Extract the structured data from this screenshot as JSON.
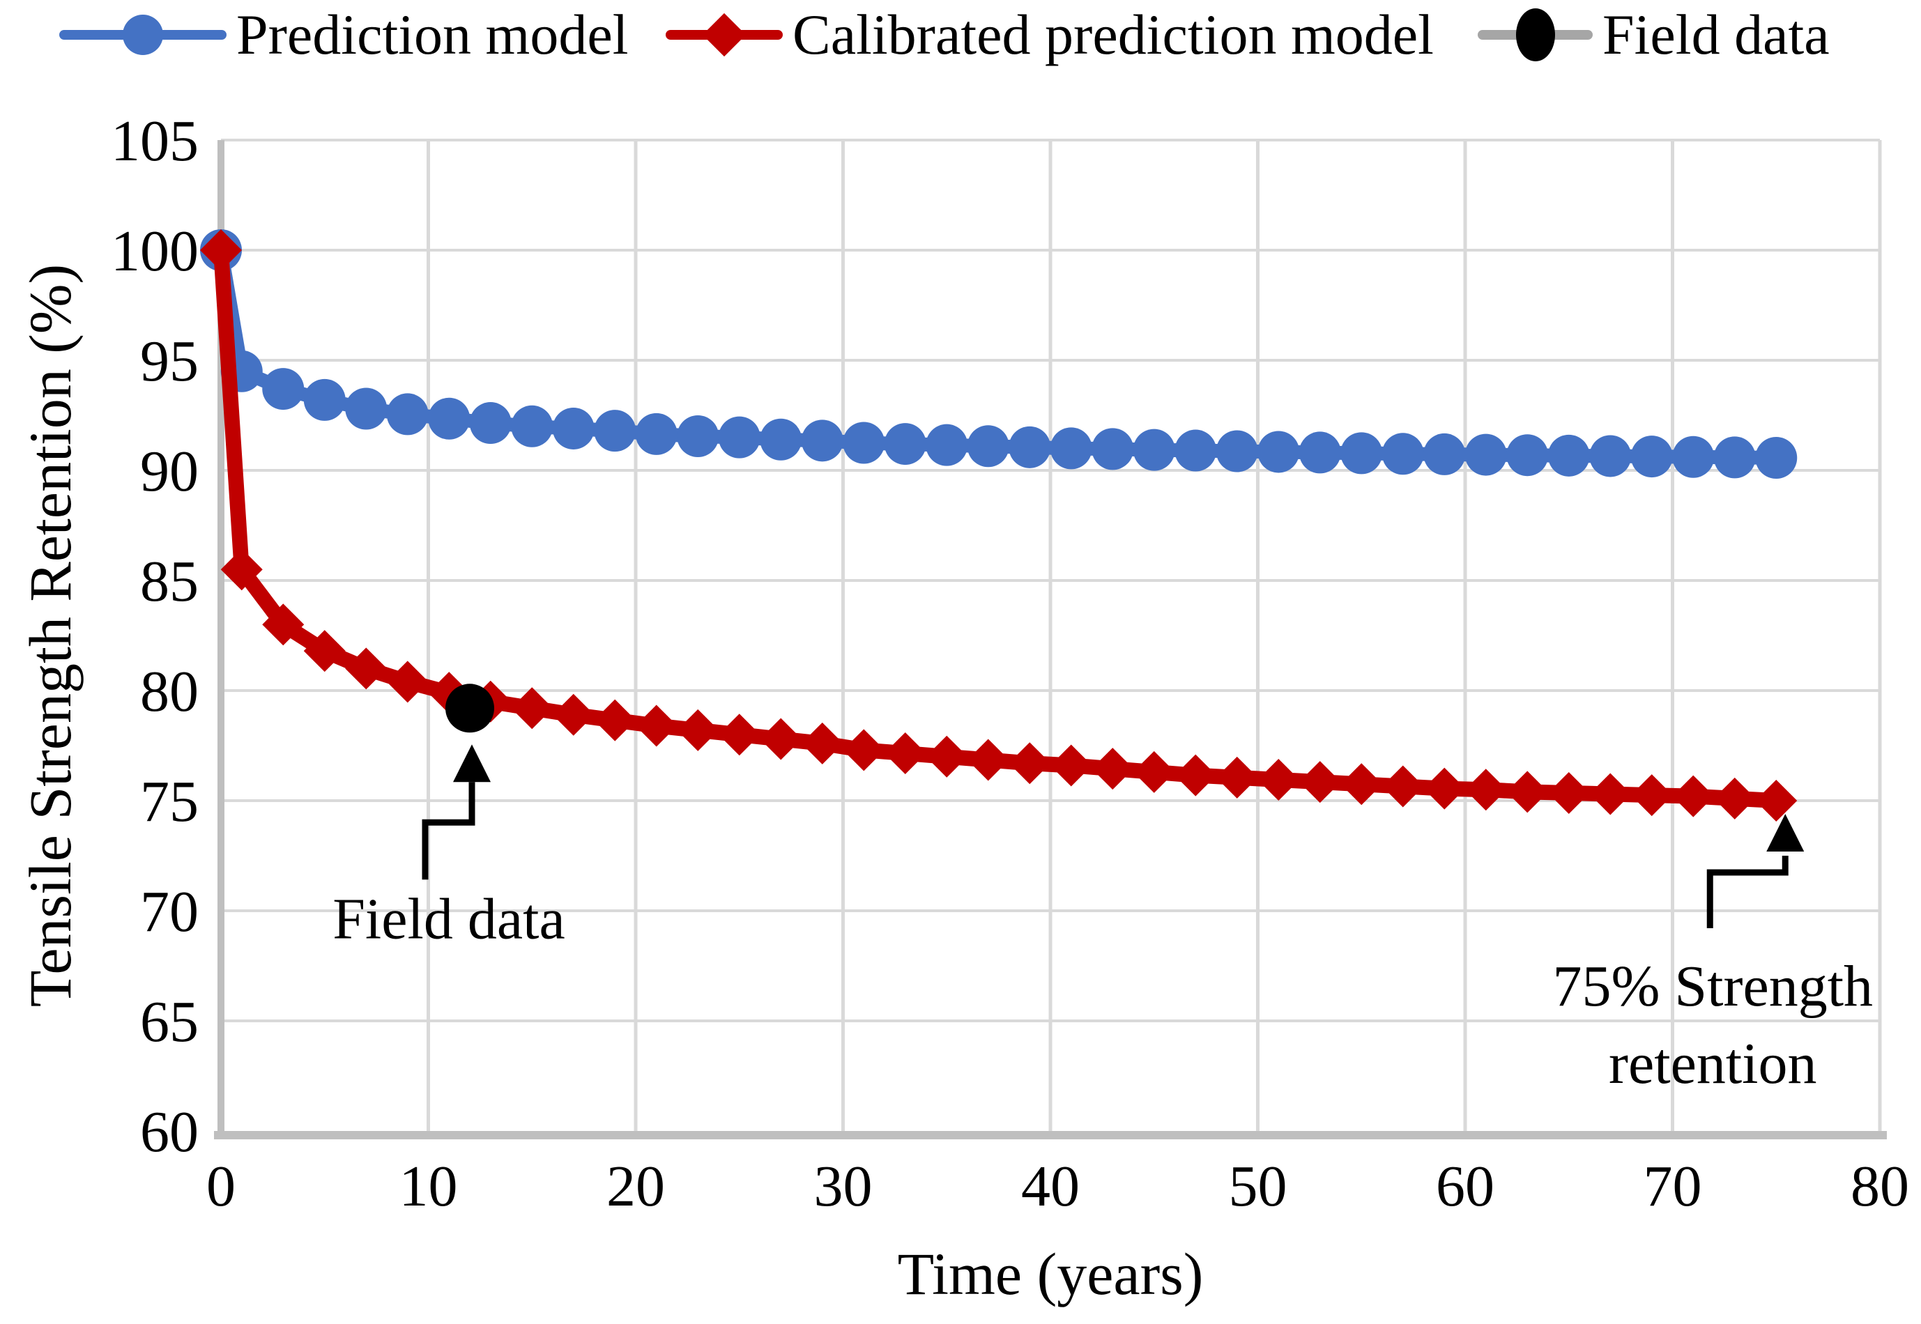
{
  "legend": {
    "items": [
      {
        "label": "Prediction model",
        "line_color": "#4472C4",
        "marker_color": "#4472C4",
        "marker": "circle"
      },
      {
        "label": "Calibrated prediction model",
        "line_color": "#C00000",
        "marker_color": "#C00000",
        "marker": "diamond"
      },
      {
        "label": "Field data",
        "line_color": "#A6A6A6",
        "marker_color": "#000000",
        "marker": "circle"
      }
    ]
  },
  "chart_data": {
    "type": "line",
    "title": "",
    "xlabel": "Time (years)",
    "ylabel": "Tensile Strength Retention (%)",
    "xlim": [
      0,
      80
    ],
    "ylim": [
      60,
      105
    ],
    "x_ticks": [
      0,
      10,
      20,
      30,
      40,
      50,
      60,
      70,
      80
    ],
    "y_ticks": [
      60,
      65,
      70,
      75,
      80,
      85,
      90,
      95,
      100,
      105
    ],
    "grid": true,
    "grid_color": "#D9D9D9",
    "axis_color": "#BFBFBF",
    "background": "#FFFFFF",
    "legend_position": "top",
    "series": [
      {
        "name": "Prediction model",
        "color": "#4472C4",
        "marker": "circle",
        "marker_size": 30,
        "line_width": 20,
        "x": [
          0,
          1,
          3,
          5,
          7,
          9,
          11,
          13,
          15,
          17,
          19,
          21,
          23,
          25,
          27,
          29,
          31,
          33,
          35,
          37,
          39,
          41,
          43,
          45,
          47,
          49,
          51,
          53,
          55,
          57,
          59,
          61,
          63,
          65,
          67,
          69,
          71,
          73,
          75
        ],
        "y": [
          100,
          94.5,
          93.7,
          93.2,
          92.8,
          92.55,
          92.35,
          92.15,
          92.0,
          91.9,
          91.8,
          91.65,
          91.55,
          91.5,
          91.4,
          91.35,
          91.25,
          91.2,
          91.15,
          91.1,
          91.05,
          91.0,
          90.97,
          90.93,
          90.9,
          90.87,
          90.84,
          90.81,
          90.78,
          90.75,
          90.73,
          90.71,
          90.69,
          90.67,
          90.65,
          90.63,
          90.61,
          90.59,
          90.57
        ]
      },
      {
        "name": "Calibrated prediction model",
        "color": "#C00000",
        "marker": "diamond",
        "marker_size": 30,
        "line_width": 22,
        "x": [
          0,
          1,
          3,
          5,
          7,
          9,
          11,
          13,
          15,
          17,
          19,
          21,
          23,
          25,
          27,
          29,
          31,
          33,
          35,
          37,
          39,
          41,
          43,
          45,
          47,
          49,
          51,
          53,
          55,
          57,
          59,
          61,
          63,
          65,
          67,
          69,
          71,
          73,
          75
        ],
        "y": [
          100,
          85.5,
          83.0,
          81.8,
          81.0,
          80.4,
          79.9,
          79.5,
          79.2,
          78.9,
          78.65,
          78.4,
          78.2,
          78.0,
          77.8,
          77.6,
          77.3,
          77.15,
          77.0,
          76.85,
          76.7,
          76.6,
          76.45,
          76.3,
          76.15,
          76.05,
          75.95,
          75.85,
          75.75,
          75.65,
          75.55,
          75.5,
          75.4,
          75.35,
          75.3,
          75.25,
          75.2,
          75.1,
          75.0
        ]
      },
      {
        "name": "Field data",
        "color": "#000000",
        "marker": "circle",
        "marker_size": 35,
        "line_width": 0,
        "x": [
          12
        ],
        "y": [
          79.2
        ]
      }
    ],
    "annotations": [
      {
        "id": "field-data-annotation",
        "lines": [
          "Field data"
        ],
        "target_x": 12,
        "target_y": 79.2
      },
      {
        "id": "strength-retention-annotation",
        "lines": [
          "75% Strength",
          "retention"
        ],
        "target_x": 75,
        "target_y": 75
      }
    ]
  }
}
